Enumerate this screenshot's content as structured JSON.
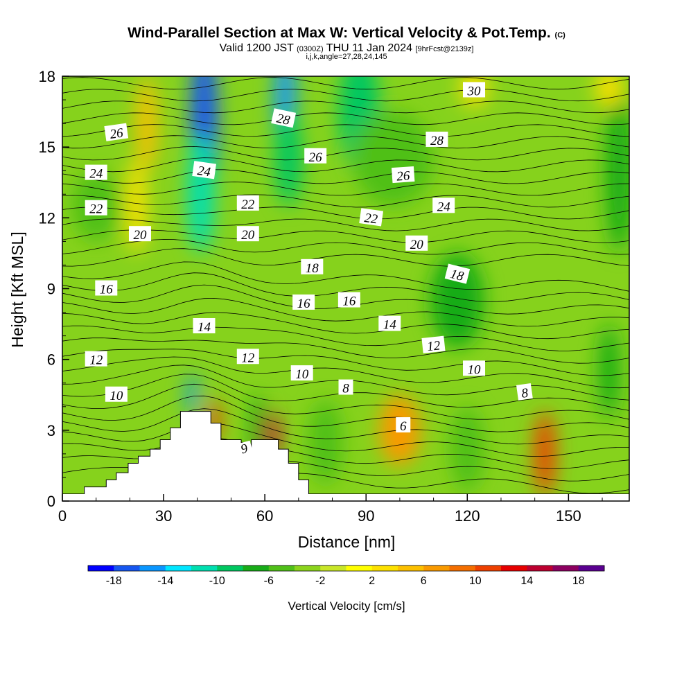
{
  "header": {
    "title": "Wind-Parallel Section at Max W: Vertical Velocity & Pot.Temp.",
    "copyright": "(C)",
    "valid_prefix": "Valid 1200 JST",
    "valid_utc": "(0300Z)",
    "valid_date": "THU 11 Jan 2024",
    "forecast": "[9hrFcst@2139z]",
    "params": "i,j,k,angle=27,28,24,145"
  },
  "chart_data": {
    "type": "heatmap",
    "xlabel": "Distance [nm]",
    "ylabel": "Height [Kft MSL]",
    "xlim": [
      0,
      168
    ],
    "ylim": [
      0,
      18
    ],
    "xticks": [
      "0",
      "30",
      "60",
      "90",
      "120",
      "150"
    ],
    "yticks": [
      "0",
      "3",
      "6",
      "9",
      "12",
      "15",
      "18"
    ],
    "colorbar": {
      "label": "Vertical Velocity [cm/s]",
      "ticks": [
        "-18",
        "-14",
        "-10",
        "-6",
        "-2",
        "2",
        "6",
        "10",
        "14",
        "18"
      ],
      "levels": [
        -20,
        -18,
        -16,
        -14,
        -12,
        -10,
        -8,
        -6,
        -4,
        -2,
        0,
        2,
        4,
        6,
        8,
        10,
        12,
        14,
        16,
        18,
        20
      ],
      "colors": [
        "#0000ff",
        "#1656f0",
        "#0a96ff",
        "#00e6ff",
        "#00dfb0",
        "#00c760",
        "#18ac18",
        "#50c018",
        "#8cd41c",
        "#c8e628",
        "#ffff00",
        "#fde100",
        "#fcc000",
        "#f99a00",
        "#f46e00",
        "#ee4000",
        "#e60000",
        "#bc0030",
        "#8c0060",
        "#5a0090"
      ]
    },
    "terrain": [
      [
        0,
        0.3
      ],
      [
        6.5,
        0.3
      ],
      [
        6.5,
        0.6
      ],
      [
        13,
        0.6
      ],
      [
        13,
        0.9
      ],
      [
        16,
        0.9
      ],
      [
        16,
        1.2
      ],
      [
        19.5,
        1.2
      ],
      [
        19.5,
        1.6
      ],
      [
        22.5,
        1.6
      ],
      [
        22.5,
        1.9
      ],
      [
        26,
        1.9
      ],
      [
        26,
        2.2
      ],
      [
        29,
        2.2
      ],
      [
        29,
        2.6
      ],
      [
        32,
        2.6
      ],
      [
        32,
        3.1
      ],
      [
        35,
        3.1
      ],
      [
        35,
        3.8
      ],
      [
        44,
        3.8
      ],
      [
        44,
        3.3
      ],
      [
        47,
        3.3
      ],
      [
        47,
        2.6
      ],
      [
        53,
        2.6
      ],
      [
        53,
        2.2
      ],
      [
        56,
        2.2
      ],
      [
        56,
        2.6
      ],
      [
        64,
        2.6
      ],
      [
        64,
        2.2
      ],
      [
        67,
        2.2
      ],
      [
        67,
        1.6
      ],
      [
        70,
        1.6
      ],
      [
        70,
        0.9
      ],
      [
        73,
        0.9
      ],
      [
        73,
        0.3
      ],
      [
        168,
        0.3
      ]
    ],
    "velocity_cells": [
      {
        "x": 42,
        "y": 16.0,
        "rx": 4.0,
        "ry": 3.5,
        "w": -18
      },
      {
        "x": 41,
        "y": 13.0,
        "rx": 4.0,
        "ry": 2.5,
        "w": -11
      },
      {
        "x": 66,
        "y": 16.8,
        "rx": 3.0,
        "ry": 2.5,
        "w": -16
      },
      {
        "x": 67,
        "y": 14.5,
        "rx": 4.0,
        "ry": 2.0,
        "w": -10
      },
      {
        "x": 88,
        "y": 16.5,
        "rx": 6.0,
        "ry": 2.5,
        "w": -10
      },
      {
        "x": 38.5,
        "y": 4.5,
        "rx": 1.5,
        "ry": 0.9,
        "w": -16
      },
      {
        "x": 58,
        "y": 3.0,
        "rx": 2.5,
        "ry": 1.5,
        "w": -7
      },
      {
        "x": 78,
        "y": 2.5,
        "rx": 5.0,
        "ry": 1.8,
        "w": -6
      },
      {
        "x": 117,
        "y": 8.5,
        "rx": 8.0,
        "ry": 2.0,
        "w": -7
      },
      {
        "x": 162,
        "y": 5.5,
        "rx": 3.0,
        "ry": 2.0,
        "w": -7
      },
      {
        "x": 165,
        "y": 14.0,
        "rx": 4.0,
        "ry": 3.5,
        "w": -7
      },
      {
        "x": 10,
        "y": 12.5,
        "rx": 7.0,
        "ry": 1.5,
        "w": -5
      },
      {
        "x": 120,
        "y": 2.2,
        "rx": 5.0,
        "ry": 1.8,
        "w": -5
      },
      {
        "x": 98,
        "y": 14.5,
        "rx": 12.0,
        "ry": 2.0,
        "w": -6
      },
      {
        "x": 25,
        "y": 16.0,
        "rx": 3.0,
        "ry": 2.0,
        "w": 4
      },
      {
        "x": 22,
        "y": 12.5,
        "rx": 3.0,
        "ry": 2.0,
        "w": 3
      },
      {
        "x": 62,
        "y": 2.8,
        "rx": 2.5,
        "ry": 1.0,
        "w": 14
      },
      {
        "x": 45,
        "y": 3.4,
        "rx": 1.8,
        "ry": 0.9,
        "w": 10
      },
      {
        "x": 100,
        "y": 3.0,
        "rx": 6.0,
        "ry": 1.5,
        "w": 6
      },
      {
        "x": 143,
        "y": 2.0,
        "rx": 3.0,
        "ry": 1.8,
        "w": 10
      },
      {
        "x": 122,
        "y": 17.5,
        "rx": 4.0,
        "ry": 0.8,
        "w": 3
      },
      {
        "x": 162,
        "y": 17.5,
        "rx": 4.0,
        "ry": 0.8,
        "w": 3
      }
    ],
    "isentrope_labels": [
      {
        "text": "30",
        "x": 122,
        "y": 17.4,
        "rot": 0
      },
      {
        "text": "28",
        "x": 65.5,
        "y": 16.2,
        "rot": 12
      },
      {
        "text": "28",
        "x": 111,
        "y": 15.3,
        "rot": 0
      },
      {
        "text": "26",
        "x": 16,
        "y": 15.6,
        "rot": -8
      },
      {
        "text": "26",
        "x": 75,
        "y": 14.6,
        "rot": 0
      },
      {
        "text": "26",
        "x": 101,
        "y": 13.8,
        "rot": -4
      },
      {
        "text": "24",
        "x": 10,
        "y": 13.9,
        "rot": 0
      },
      {
        "text": "24",
        "x": 42,
        "y": 14.0,
        "rot": 8
      },
      {
        "text": "24",
        "x": 113,
        "y": 12.5,
        "rot": 0
      },
      {
        "text": "22",
        "x": 10,
        "y": 12.4,
        "rot": 0
      },
      {
        "text": "22",
        "x": 55,
        "y": 12.6,
        "rot": 0
      },
      {
        "text": "22",
        "x": 91.5,
        "y": 12.0,
        "rot": 8
      },
      {
        "text": "20",
        "x": 23,
        "y": 11.3,
        "rot": 0
      },
      {
        "text": "20",
        "x": 55,
        "y": 11.3,
        "rot": 0
      },
      {
        "text": "20",
        "x": 105,
        "y": 10.9,
        "rot": 0
      },
      {
        "text": "18",
        "x": 74,
        "y": 9.9,
        "rot": 0
      },
      {
        "text": "18",
        "x": 117,
        "y": 9.6,
        "rot": 14
      },
      {
        "text": "16",
        "x": 13,
        "y": 9.0,
        "rot": 0
      },
      {
        "text": "16",
        "x": 71.5,
        "y": 8.4,
        "rot": 0
      },
      {
        "text": "16",
        "x": 85,
        "y": 8.5,
        "rot": 0
      },
      {
        "text": "14",
        "x": 42,
        "y": 7.4,
        "rot": 0
      },
      {
        "text": "14",
        "x": 97,
        "y": 7.5,
        "rot": 0
      },
      {
        "text": "12",
        "x": 10,
        "y": 6.0,
        "rot": 0
      },
      {
        "text": "12",
        "x": 55,
        "y": 6.1,
        "rot": 0
      },
      {
        "text": "12",
        "x": 110,
        "y": 6.6,
        "rot": -6
      },
      {
        "text": "10",
        "x": 16,
        "y": 4.5,
        "rot": 0
      },
      {
        "text": "10",
        "x": 71,
        "y": 5.4,
        "rot": 0
      },
      {
        "text": "10",
        "x": 122,
        "y": 5.6,
        "rot": 0
      },
      {
        "text": "8",
        "x": 84,
        "y": 4.8,
        "rot": 0
      },
      {
        "text": "8",
        "x": 137,
        "y": 4.6,
        "rot": -8
      },
      {
        "text": "6",
        "x": 101,
        "y": 3.2,
        "rot": 0
      },
      {
        "text": "6",
        "x": 54,
        "y": 2.2,
        "rot": 165
      }
    ]
  }
}
